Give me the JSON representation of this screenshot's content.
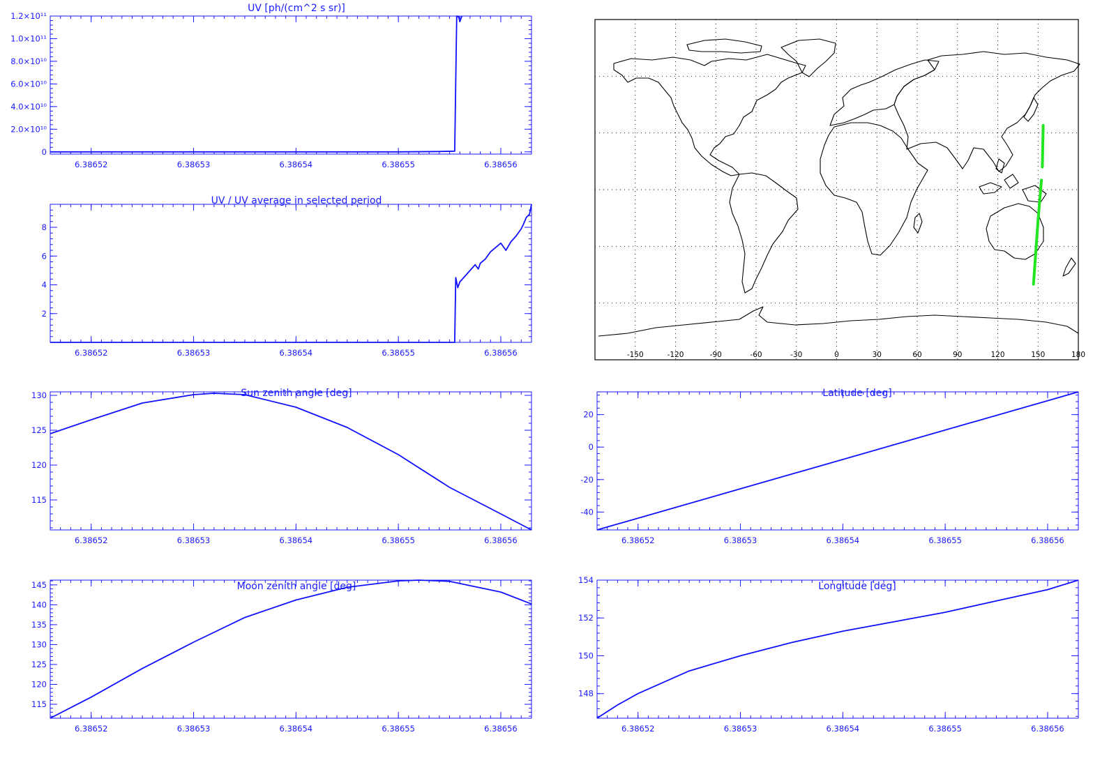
{
  "chart_data": [
    {
      "id": "uv",
      "type": "line",
      "title": "UV [ph/(cm^2 s sr)]",
      "xlim": [
        6.386516,
        6.386563
      ],
      "ylim": [
        -2000000000,
        120000000000
      ],
      "xticks": [
        6.38652,
        6.38653,
        6.38654,
        6.38655,
        6.38656
      ],
      "xtick_labels": [
        "6.38652",
        "6.38653",
        "6.38654",
        "6.38655",
        "6.38656"
      ],
      "yticks": [
        0,
        20000000000,
        40000000000,
        60000000000,
        80000000000,
        100000000000,
        120000000000
      ],
      "ytick_labels": [
        "0",
        "2.0×10¹⁰",
        "4.0×10¹⁰",
        "6.0×10¹⁰",
        "8.0×10¹⁰",
        "1.0×10¹¹",
        "1.2×10¹¹"
      ],
      "color": "#1010ff",
      "series": [
        {
          "x": [
            6.386516,
            6.38655,
            6.386554,
            6.3865555,
            6.3865557,
            6.3865559,
            6.386556,
            6.3865562
          ],
          "y": [
            0,
            0,
            300000000,
            600000000,
            120000000000,
            119000000000,
            115000000000,
            120000000000
          ]
        }
      ]
    },
    {
      "id": "uv-ratio",
      "type": "line",
      "title": "UV / UV average in selected period",
      "xlim": [
        6.386516,
        6.386563
      ],
      "ylim": [
        0,
        9.6
      ],
      "xticks": [
        6.38652,
        6.38653,
        6.38654,
        6.38655,
        6.38656
      ],
      "xtick_labels": [
        "6.38652",
        "6.38653",
        "6.38654",
        "6.38655",
        "6.38656"
      ],
      "yticks": [
        2,
        4,
        6,
        8
      ],
      "ytick_labels": [
        "2",
        "4",
        "6",
        "8"
      ],
      "color": "#1010ff",
      "series": [
        {
          "x": [
            6.386516,
            6.3865555,
            6.3865556,
            6.3865558,
            6.386556,
            6.3865565,
            6.386557,
            6.3865575,
            6.3865578,
            6.386558,
            6.3865585,
            6.3865588,
            6.386559,
            6.3865595,
            6.38656,
            6.3865605,
            6.386561,
            6.3865615,
            6.386562,
            6.3865622,
            6.3865625,
            6.3865628,
            6.386563
          ],
          "y": [
            0,
            0,
            4.5,
            3.8,
            4.2,
            4.6,
            5.0,
            5.4,
            5.1,
            5.5,
            5.8,
            6.1,
            6.3,
            6.6,
            6.9,
            6.4,
            7.0,
            7.4,
            7.9,
            8.2,
            8.7,
            8.9,
            9.6
          ]
        }
      ]
    },
    {
      "id": "sun-zenith",
      "type": "line",
      "title": "Sun zenith angle [deg]",
      "xlim": [
        6.386516,
        6.386563
      ],
      "ylim": [
        110.7,
        130.5
      ],
      "xticks": [
        6.38652,
        6.38653,
        6.38654,
        6.38655,
        6.38656
      ],
      "xtick_labels": [
        "6.38652",
        "6.38653",
        "6.38654",
        "6.38655",
        "6.38656"
      ],
      "yticks": [
        115,
        120,
        125,
        130
      ],
      "ytick_labels": [
        "115",
        "120",
        "125",
        "130"
      ],
      "color": "#1010ff",
      "series": [
        {
          "x": [
            6.386516,
            6.38652,
            6.386525,
            6.38653,
            6.386532,
            6.386535,
            6.38654,
            6.386545,
            6.38655,
            6.386555,
            6.38656,
            6.386563
          ],
          "y": [
            124.5,
            126.5,
            128.9,
            130.1,
            130.3,
            130.1,
            128.3,
            125.4,
            121.5,
            116.8,
            113.0,
            110.7
          ]
        }
      ]
    },
    {
      "id": "latitude",
      "type": "line",
      "title": "Latitude [deg]",
      "xlim": [
        6.386516,
        6.386563
      ],
      "ylim": [
        -51,
        34
      ],
      "xticks": [
        6.38652,
        6.38653,
        6.38654,
        6.38655,
        6.38656
      ],
      "xtick_labels": [
        "6.38652",
        "6.38653",
        "6.38654",
        "6.38655",
        "6.38656"
      ],
      "yticks": [
        -40,
        -20,
        0,
        20
      ],
      "ytick_labels": [
        "-40",
        "-20",
        "0",
        "20"
      ],
      "color": "#1010ff",
      "series": [
        {
          "x": [
            6.386516,
            6.386563
          ],
          "y": [
            -51,
            34
          ]
        }
      ]
    },
    {
      "id": "moon-zenith",
      "type": "line",
      "title": "Moon zenith angle [deg]",
      "xlim": [
        6.386516,
        6.386563
      ],
      "ylim": [
        111.5,
        146.2
      ],
      "xticks": [
        6.38652,
        6.38653,
        6.38654,
        6.38655,
        6.38656
      ],
      "xtick_labels": [
        "6.38652",
        "6.38653",
        "6.38654",
        "6.38655",
        "6.38656"
      ],
      "yticks": [
        115,
        120,
        125,
        130,
        135,
        140,
        145
      ],
      "ytick_labels": [
        "115",
        "120",
        "125",
        "130",
        "135",
        "140",
        "145"
      ],
      "color": "#1010ff",
      "series": [
        {
          "x": [
            6.386516,
            6.38652,
            6.386525,
            6.38653,
            6.386535,
            6.38654,
            6.386545,
            6.38655,
            6.386552,
            6.386555,
            6.38656,
            6.386563
          ],
          "y": [
            111.5,
            116.8,
            124.0,
            130.6,
            136.8,
            141.2,
            144.4,
            146.0,
            146.2,
            145.9,
            143.2,
            140.2
          ]
        }
      ]
    },
    {
      "id": "longitude",
      "type": "line",
      "title": "Longitude [deg]",
      "xlim": [
        6.386516,
        6.386563
      ],
      "ylim": [
        146.7,
        154.0
      ],
      "xticks": [
        6.38652,
        6.38653,
        6.38654,
        6.38655,
        6.38656
      ],
      "xtick_labels": [
        "6.38652",
        "6.38653",
        "6.38654",
        "6.38655",
        "6.38656"
      ],
      "yticks": [
        148,
        150,
        152,
        154
      ],
      "ytick_labels": [
        "148",
        "150",
        "152",
        "154"
      ],
      "color": "#1010ff",
      "series": [
        {
          "x": [
            6.386516,
            6.386518,
            6.38652,
            6.386525,
            6.38653,
            6.386535,
            6.38654,
            6.386545,
            6.38655,
            6.386555,
            6.38656,
            6.386563
          ],
          "y": [
            146.7,
            147.4,
            148.0,
            149.2,
            150.0,
            150.7,
            151.3,
            151.8,
            152.3,
            152.9,
            153.5,
            154.0
          ]
        }
      ]
    }
  ],
  "map": {
    "lon_range": [
      -180,
      180
    ],
    "lat_range": [
      -90,
      90
    ],
    "xticks": [
      -150,
      -120,
      -90,
      -60,
      -30,
      0,
      30,
      60,
      90,
      120,
      150,
      180
    ],
    "xtick_labels": [
      "-150",
      "-120",
      "-90",
      "-60",
      "-30",
      "0",
      "30",
      "60",
      "90",
      "120",
      "150",
      "180"
    ],
    "grid_lats": [
      -60,
      -30,
      0,
      30,
      60
    ],
    "track_color": "#22e622",
    "track": [
      {
        "lon": [
          146.6,
          150.0,
          152.5
        ],
        "lat": [
          -50,
          -16,
          5
        ]
      },
      {
        "lon": [
          153.2,
          153.8
        ],
        "lat": [
          12,
          34
        ]
      }
    ]
  }
}
